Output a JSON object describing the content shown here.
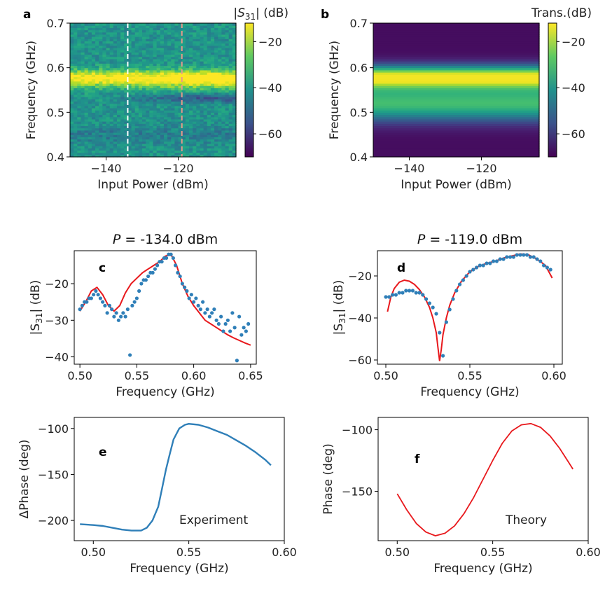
{
  "colors": {
    "dots": "#2f7fb8",
    "fit": "#e8181c",
    "exp_line": "#2f7fb8",
    "theory_line": "#e8181c"
  },
  "chart_data": [
    {
      "id": "a",
      "panel_label": "a",
      "type": "heatmap",
      "xlabel": "Input Power (dBm)",
      "ylabel": "Frequency (GHz)",
      "colorbar_label": "|S31| (dB)",
      "xlim": [
        -150,
        -104
      ],
      "ylim": [
        0.4,
        0.7
      ],
      "clim": [
        -70,
        -12
      ],
      "xticks": [
        -140,
        -120
      ],
      "yticks": [
        0.4,
        0.5,
        0.6,
        0.7
      ],
      "cticks": [
        -60,
        -40,
        -20
      ],
      "markers": [
        {
          "x": -134,
          "color": "#ffffff"
        },
        {
          "x": -119,
          "color": "#e89a8a"
        }
      ]
    },
    {
      "id": "b",
      "panel_label": "b",
      "type": "heatmap",
      "xlabel": "Input Power (dBm)",
      "ylabel": "Frequency (GHz)",
      "colorbar_label": "Trans.(dB)",
      "xlim": [
        -150,
        -104
      ],
      "ylim": [
        0.4,
        0.7
      ],
      "clim": [
        -70,
        -12
      ],
      "xticks": [
        -140,
        -120
      ],
      "yticks": [
        0.4,
        0.5,
        0.6,
        0.7
      ],
      "cticks": [
        -60,
        -40,
        -20
      ]
    },
    {
      "id": "c",
      "panel_label": "c",
      "type": "scatter",
      "title_prefix": "P",
      "title_value": " = -134.0 dBm",
      "xlabel": "Frequency (GHz)",
      "ylabel": "|S31| (dB)",
      "xlim": [
        0.495,
        0.655
      ],
      "ylim": [
        -42,
        -11
      ],
      "xticks": [
        0.5,
        0.55,
        0.6,
        0.65
      ],
      "xtick_labels": [
        "0.50",
        "0.55",
        "0.60",
        "0.65"
      ],
      "yticks": [
        -40,
        -30,
        -20
      ],
      "ytick_labels": [
        "−40",
        "−30",
        "−20"
      ],
      "series": [
        {
          "name": "measured",
          "x": [
            0.5,
            0.502,
            0.504,
            0.506,
            0.508,
            0.51,
            0.512,
            0.514,
            0.516,
            0.518,
            0.52,
            0.522,
            0.524,
            0.526,
            0.528,
            0.53,
            0.532,
            0.534,
            0.536,
            0.538,
            0.54,
            0.542,
            0.544,
            0.546,
            0.548,
            0.55,
            0.552,
            0.554,
            0.556,
            0.558,
            0.56,
            0.562,
            0.564,
            0.566,
            0.568,
            0.57,
            0.572,
            0.574,
            0.576,
            0.578,
            0.58,
            0.582,
            0.584,
            0.586,
            0.588,
            0.59,
            0.592,
            0.594,
            0.596,
            0.598,
            0.6,
            0.602,
            0.604,
            0.606,
            0.608,
            0.61,
            0.612,
            0.614,
            0.616,
            0.618,
            0.62,
            0.622,
            0.624,
            0.626,
            0.628,
            0.63,
            0.632,
            0.634,
            0.636,
            0.638,
            0.64,
            0.642,
            0.644,
            0.646,
            0.648
          ],
          "y": [
            -27,
            -26,
            -25,
            -25,
            -24,
            -24,
            -23,
            -22,
            -23,
            -24,
            -25,
            -26,
            -28,
            -26,
            -27,
            -29,
            -28,
            -30,
            -29,
            -28,
            -29,
            -27,
            -39.5,
            -26,
            -25,
            -24,
            -22,
            -20,
            -19,
            -19,
            -18,
            -17,
            -17,
            -16,
            -15,
            -14,
            -14,
            -13,
            -13,
            -12,
            -12,
            -13,
            -15,
            -17,
            -18,
            -20,
            -21,
            -22,
            -24,
            -23,
            -25,
            -24,
            -26,
            -27,
            -25,
            -28,
            -27,
            -29,
            -28,
            -27,
            -30,
            -31,
            -29,
            -33,
            -31,
            -30,
            -33,
            -28,
            -32,
            -41,
            -29,
            -34,
            -32,
            -33,
            -31
          ]
        },
        {
          "name": "fit",
          "x": [
            0.5,
            0.505,
            0.51,
            0.515,
            0.52,
            0.525,
            0.53,
            0.535,
            0.54,
            0.545,
            0.55,
            0.555,
            0.56,
            0.565,
            0.57,
            0.575,
            0.58,
            0.585,
            0.59,
            0.595,
            0.6,
            0.605,
            0.61,
            0.615,
            0.62,
            0.625,
            0.63,
            0.635,
            0.64,
            0.645,
            0.65
          ],
          "y": [
            -27.5,
            -25,
            -22,
            -21,
            -23,
            -26,
            -27.5,
            -26,
            -22.5,
            -20,
            -18.5,
            -17,
            -16,
            -15,
            -14,
            -12.5,
            -12,
            -15,
            -20,
            -23.5,
            -26,
            -28,
            -30,
            -31,
            -32,
            -33,
            -34,
            -34.8,
            -35.5,
            -36.2,
            -36.8
          ]
        }
      ]
    },
    {
      "id": "d",
      "panel_label": "d",
      "type": "scatter",
      "title_prefix": "P",
      "title_value": " = -119.0 dBm",
      "xlabel": "Frequency (GHz)",
      "ylabel": "|S31| (dB)",
      "xlim": [
        0.495,
        0.605
      ],
      "ylim": [
        -62,
        -8
      ],
      "xticks": [
        0.5,
        0.55,
        0.6
      ],
      "xtick_labels": [
        "0.50",
        "0.55",
        "0.60"
      ],
      "yticks": [
        -60,
        -40,
        -20
      ],
      "ytick_labels": [
        "−60",
        "−40",
        "−20"
      ],
      "series": [
        {
          "name": "measured",
          "x": [
            0.5,
            0.502,
            0.504,
            0.506,
            0.508,
            0.51,
            0.512,
            0.514,
            0.516,
            0.518,
            0.52,
            0.522,
            0.524,
            0.526,
            0.528,
            0.53,
            0.532,
            0.534,
            0.536,
            0.538,
            0.54,
            0.542,
            0.544,
            0.546,
            0.548,
            0.55,
            0.552,
            0.554,
            0.556,
            0.558,
            0.56,
            0.562,
            0.564,
            0.566,
            0.568,
            0.57,
            0.572,
            0.574,
            0.576,
            0.578,
            0.58,
            0.582,
            0.584,
            0.586,
            0.588,
            0.59,
            0.592,
            0.594,
            0.596,
            0.598
          ],
          "y": [
            -30,
            -30,
            -29,
            -29,
            -28,
            -28,
            -27,
            -27,
            -27,
            -28,
            -28,
            -29,
            -31,
            -33,
            -35,
            -38,
            -47,
            -58,
            -42,
            -36,
            -31,
            -27,
            -24,
            -22,
            -20,
            -18,
            -17,
            -16,
            -15,
            -15,
            -14,
            -14,
            -13,
            -13,
            -12,
            -12,
            -11,
            -11,
            -11,
            -10,
            -10,
            -10,
            -10,
            -11,
            -11,
            -12,
            -13,
            -15,
            -16,
            -17
          ]
        },
        {
          "name": "fit",
          "x": [
            0.501,
            0.503,
            0.505,
            0.508,
            0.511,
            0.514,
            0.517,
            0.52,
            0.523,
            0.526,
            0.528,
            0.53,
            0.531,
            0.532,
            0.533,
            0.534,
            0.536,
            0.538,
            0.541,
            0.545,
            0.55,
            0.555,
            0.56,
            0.565,
            0.57,
            0.575,
            0.58,
            0.585,
            0.59,
            0.595,
            0.599
          ],
          "y": [
            -37,
            -30,
            -26,
            -23,
            -22,
            -22.5,
            -24,
            -26.5,
            -30,
            -35,
            -40,
            -47,
            -54,
            -60.5,
            -55,
            -48,
            -40,
            -34,
            -28,
            -22.5,
            -18,
            -15.5,
            -14,
            -13,
            -11.5,
            -10.5,
            -9.5,
            -10,
            -12,
            -15,
            -21
          ]
        }
      ]
    },
    {
      "id": "e",
      "panel_label": "e",
      "type": "line",
      "xlabel": "Frequency (GHz)",
      "ylabel": "ΔPhase (deg)",
      "annotation": "Experiment",
      "xlim": [
        0.49,
        0.6
      ],
      "ylim": [
        -222,
        -88
      ],
      "xticks": [
        0.5,
        0.55,
        0.6
      ],
      "xtick_labels": [
        "0.50",
        "0.55",
        "0.60"
      ],
      "yticks": [
        -200,
        -150,
        -100
      ],
      "ytick_labels": [
        "−200",
        "−150",
        "−100"
      ],
      "series": [
        {
          "name": "experiment",
          "x": [
            0.493,
            0.5,
            0.505,
            0.51,
            0.515,
            0.52,
            0.525,
            0.528,
            0.531,
            0.534,
            0.536,
            0.538,
            0.54,
            0.542,
            0.545,
            0.548,
            0.55,
            0.555,
            0.56,
            0.565,
            0.57,
            0.575,
            0.58,
            0.585,
            0.59,
            0.593
          ],
          "y": [
            -204,
            -205,
            -206,
            -208,
            -210,
            -211,
            -211,
            -208,
            -200,
            -185,
            -165,
            -145,
            -128,
            -112,
            -100,
            -96,
            -95,
            -96,
            -99,
            -103,
            -107,
            -113,
            -119,
            -126,
            -134,
            -140
          ]
        }
      ]
    },
    {
      "id": "f",
      "panel_label": "f",
      "type": "line",
      "xlabel": "Frequency (GHz)",
      "ylabel": "Phase (deg)",
      "annotation": "Theory",
      "xlim": [
        0.49,
        0.6
      ],
      "ylim": [
        -190,
        -90
      ],
      "xticks": [
        0.5,
        0.55,
        0.6
      ],
      "xtick_labels": [
        "0.50",
        "0.55",
        "0.60"
      ],
      "yticks": [
        -150,
        -100
      ],
      "ytick_labels": [
        "−150",
        "−100"
      ],
      "series": [
        {
          "name": "theory",
          "x": [
            0.5,
            0.505,
            0.51,
            0.515,
            0.52,
            0.525,
            0.53,
            0.535,
            0.54,
            0.545,
            0.55,
            0.555,
            0.56,
            0.565,
            0.57,
            0.575,
            0.58,
            0.585,
            0.59,
            0.592
          ],
          "y": [
            -152,
            -165,
            -176,
            -183,
            -186,
            -184,
            -178,
            -168,
            -155,
            -140,
            -125,
            -111,
            -101,
            -96,
            -95,
            -98,
            -105,
            -115,
            -127,
            -132
          ]
        }
      ]
    }
  ]
}
